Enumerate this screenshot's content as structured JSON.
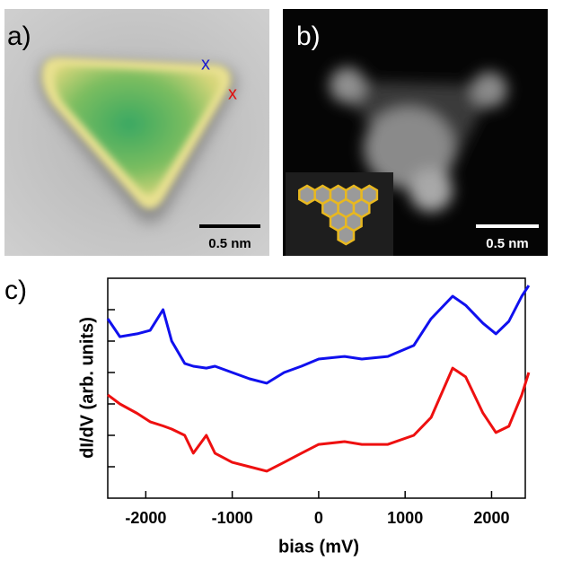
{
  "panel_a": {
    "label": "a)",
    "markers": [
      "x",
      "x"
    ],
    "scale_bar": "0.5 nm"
  },
  "panel_b": {
    "label": "b)",
    "scale_bar": "0.5 nm"
  },
  "chart_data": {
    "type": "line",
    "panel_label": "c)",
    "x_label": "bias (mV)",
    "y_label": "dI/dV (arb. units)",
    "x": [
      -2440,
      -2300,
      -2100,
      -1950,
      -1800,
      -1700,
      -1550,
      -1450,
      -1300,
      -1200,
      -1000,
      -800,
      -600,
      -400,
      -200,
      0,
      300,
      500,
      800,
      1100,
      1300,
      1550,
      1700,
      1900,
      2050,
      2200,
      2350,
      2430
    ],
    "series": [
      {
        "color": "#1010ee",
        "values": [
          5.71,
          5.14,
          5.23,
          5.34,
          6.0,
          5.0,
          4.29,
          4.2,
          4.14,
          4.2,
          4.0,
          3.8,
          3.66,
          4.0,
          4.2,
          4.43,
          4.51,
          4.43,
          4.51,
          4.86,
          5.71,
          6.43,
          6.14,
          5.57,
          5.23,
          5.63,
          6.43,
          6.77
        ]
      },
      {
        "color": "#ee1010",
        "values": [
          3.29,
          3.0,
          2.7,
          2.43,
          2.3,
          2.2,
          2.0,
          1.43,
          2.0,
          1.43,
          1.14,
          1.0,
          0.86,
          1.14,
          1.43,
          1.71,
          1.8,
          1.71,
          1.71,
          2.0,
          2.57,
          4.14,
          3.86,
          2.71,
          2.09,
          2.29,
          3.29,
          4.0
        ]
      }
    ],
    "xlim": [
      -2440,
      2390
    ],
    "xticks": [
      -2000,
      -1000,
      0,
      1000,
      2000
    ],
    "ylim": [
      0,
      7
    ],
    "yticks": [
      1,
      2,
      3,
      4,
      5,
      6
    ]
  }
}
